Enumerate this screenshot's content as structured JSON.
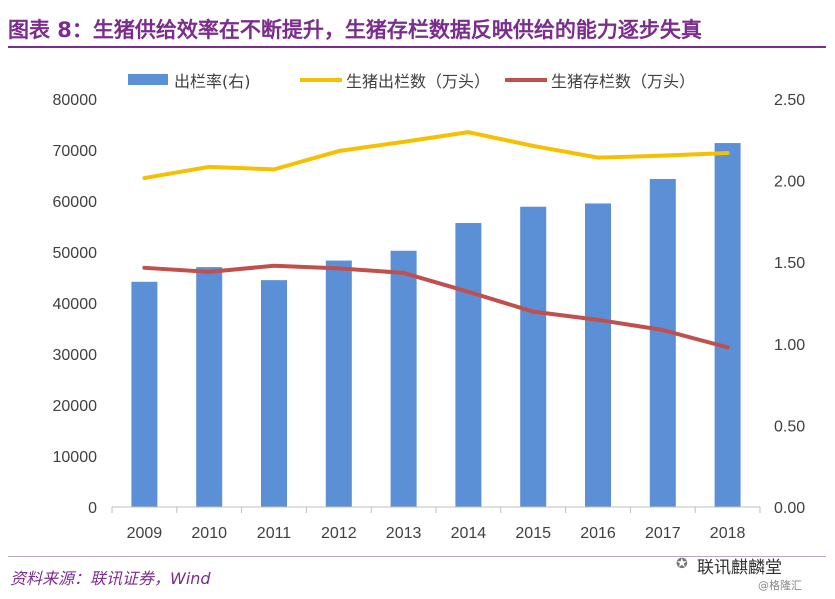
{
  "title": "图表 8：生猪供给效率在不断提升，生猪存栏数据反映供给的能力逐步失真",
  "source": "资料来源：联讯证券，Wind",
  "watermark": {
    "name": "联讯麒麟堂",
    "handle": "@格隆汇",
    "icon": "wechat-icon"
  },
  "chart_data": {
    "type": "bar",
    "categories": [
      "2009",
      "2010",
      "2011",
      "2012",
      "2013",
      "2014",
      "2015",
      "2016",
      "2017",
      "2018"
    ],
    "series": [
      {
        "name": "出栏率(右)",
        "type": "bar",
        "axis": "right",
        "color": "#5b8fd6",
        "values": [
          1.38,
          1.47,
          1.39,
          1.51,
          1.57,
          1.74,
          1.84,
          1.86,
          2.01,
          2.23
        ]
      },
      {
        "name": "生猪出栏数（万头）",
        "type": "line",
        "axis": "left",
        "color": "#f5c000",
        "values": [
          64500,
          66700,
          66200,
          69800,
          71600,
          73500,
          70800,
          68500,
          68900,
          69400
        ]
      },
      {
        "name": "生猪存栏数（万头）",
        "type": "line",
        "axis": "left",
        "color": "#c0504d",
        "values": [
          46900,
          46100,
          47300,
          46800,
          45900,
          42200,
          38300,
          36700,
          34700,
          31300
        ]
      }
    ],
    "left_axis": {
      "min": 0,
      "max": 80000,
      "ticks": [
        "0",
        "10000",
        "20000",
        "30000",
        "40000",
        "50000",
        "60000",
        "70000",
        "80000"
      ]
    },
    "right_axis": {
      "min": 0,
      "max": 2.5,
      "ticks": [
        "0.00",
        "0.50",
        "1.00",
        "1.50",
        "2.00",
        "2.50"
      ]
    },
    "legend_position": "top",
    "grid": false
  }
}
